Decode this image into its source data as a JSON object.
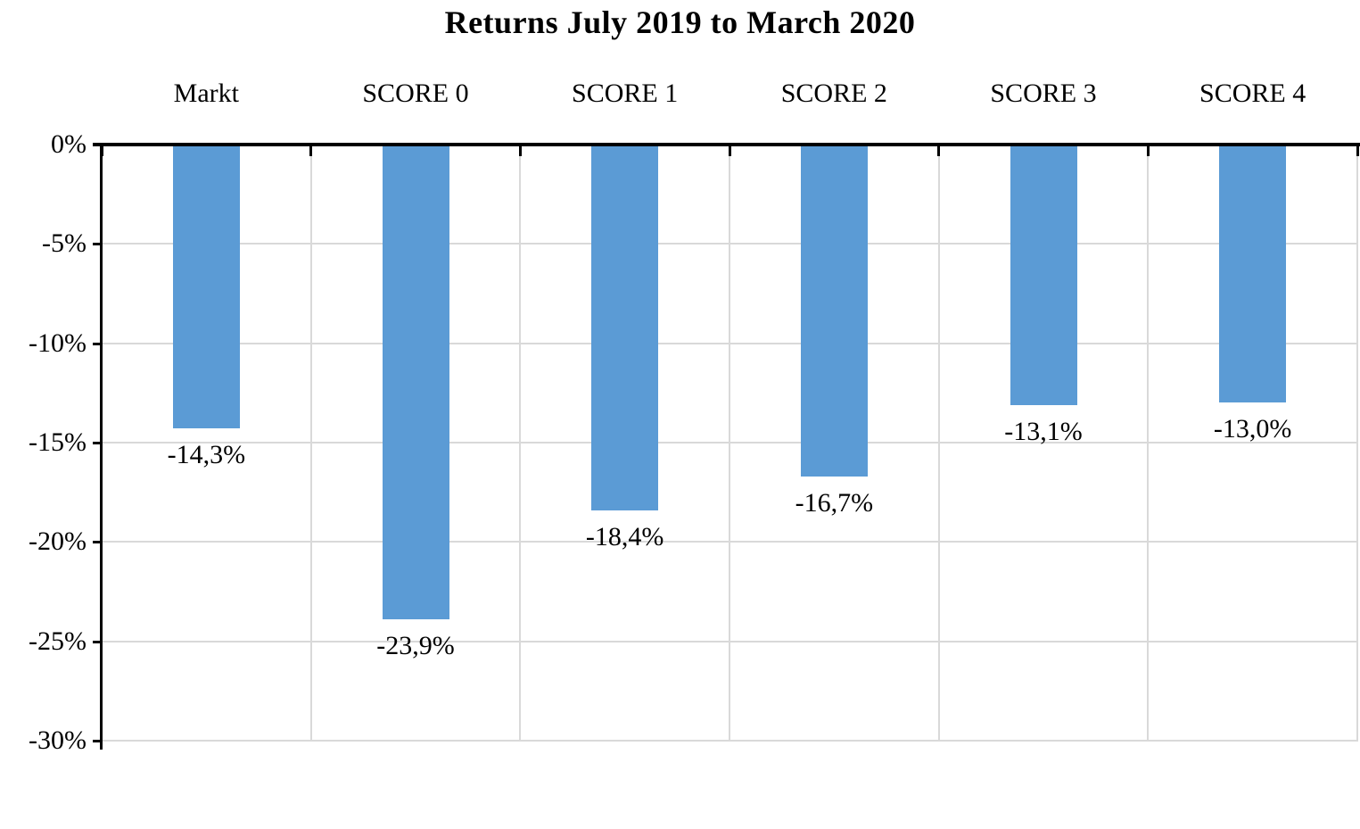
{
  "chart_data": {
    "type": "bar",
    "title": "Returns July 2019 to March 2020",
    "categories": [
      "Markt",
      "SCORE 0",
      "SCORE 1",
      "SCORE 2",
      "SCORE 3",
      "SCORE 4"
    ],
    "values": [
      -14.3,
      -23.9,
      -18.4,
      -16.7,
      -13.1,
      -13.0
    ],
    "data_labels": [
      "-14,3%",
      "-23,9%",
      "-18,4%",
      "-16,7%",
      "-13,1%",
      "-13,0%"
    ],
    "y_ticks": [
      0,
      -5,
      -10,
      -15,
      -20,
      -25,
      -30
    ],
    "y_tick_labels": [
      "0%",
      "-5%",
      "-10%",
      "-15%",
      "-20%",
      "-25%",
      "-30%"
    ],
    "ylim": [
      -30,
      0
    ],
    "xlabel": "",
    "ylabel": "",
    "grid": true,
    "legend": false,
    "colors": {
      "bar": "#5B9BD5",
      "gridline": "#D9D9D9",
      "axis": "#000000",
      "text": "#000000",
      "background": "#FFFFFF"
    }
  }
}
